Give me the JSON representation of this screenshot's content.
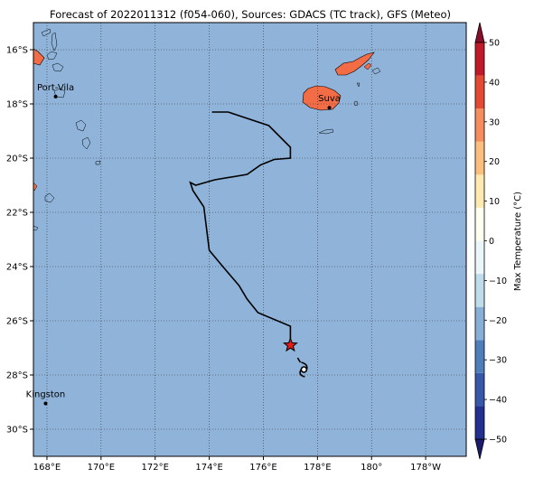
{
  "title": "Forecast of 2022011312 (f054-060), Sources: GDACS (TC track), GFS (Meteo)",
  "map": {
    "lon_range": [
      167.5,
      183.5
    ],
    "lat_range": [
      -31.0,
      -15.0
    ],
    "ocean_color": "#8fb3d9",
    "land_cold_color": "#8fb3d9",
    "land_warm_color": "#f26c45",
    "gridlines": "dotted",
    "x_ticks": [
      {
        "lon": 168,
        "label": "168°E"
      },
      {
        "lon": 170,
        "label": "170°E"
      },
      {
        "lon": 172,
        "label": "172°E"
      },
      {
        "lon": 174,
        "label": "174°E"
      },
      {
        "lon": 176,
        "label": "176°E"
      },
      {
        "lon": 178,
        "label": "178°E"
      },
      {
        "lon": 180,
        "label": "180°"
      },
      {
        "lon": 182,
        "label": "178°W"
      }
    ],
    "y_ticks": [
      {
        "lat": -16,
        "label": "16°S"
      },
      {
        "lat": -18,
        "label": "18°S"
      },
      {
        "lat": -20,
        "label": "20°S"
      },
      {
        "lat": -22,
        "label": "22°S"
      },
      {
        "lat": -24,
        "label": "24°S"
      },
      {
        "lat": -26,
        "label": "26°S"
      },
      {
        "lat": -28,
        "label": "28°S"
      },
      {
        "lat": -30,
        "label": "30°S"
      }
    ]
  },
  "cities": [
    {
      "name": "Port-Vila",
      "lon": 168.32,
      "lat": -17.73
    },
    {
      "name": "Suva",
      "lon": 178.44,
      "lat": -18.14
    },
    {
      "name": "Kingston",
      "lon": 167.95,
      "lat": -29.05
    }
  ],
  "track": {
    "color": "#000000",
    "points": [
      [
        174.1,
        -18.3
      ],
      [
        174.7,
        -18.3
      ],
      [
        176.2,
        -18.8
      ],
      [
        177.0,
        -19.6
      ],
      [
        177.0,
        -20.0
      ],
      [
        176.4,
        -20.05
      ],
      [
        175.9,
        -20.25
      ],
      [
        175.4,
        -20.6
      ],
      [
        174.2,
        -20.8
      ],
      [
        173.5,
        -21.0
      ],
      [
        173.3,
        -20.9
      ],
      [
        173.4,
        -21.2
      ],
      [
        173.8,
        -21.8
      ],
      [
        174.0,
        -23.4
      ],
      [
        174.5,
        -24.0
      ],
      [
        175.1,
        -24.7
      ],
      [
        175.4,
        -25.2
      ],
      [
        175.8,
        -25.7
      ],
      [
        177.0,
        -26.2
      ],
      [
        177.0,
        -26.9
      ]
    ],
    "star": {
      "lon": 177.0,
      "lat": -26.9,
      "color": "#e01b1b"
    },
    "cyclone_symbol": {
      "lon": 177.5,
      "lat": -27.8
    }
  },
  "colorbar": {
    "label": "Max Temperature (°C)",
    "min": -50,
    "max": 50,
    "ticks": [
      50,
      40,
      30,
      20,
      10,
      0,
      -10,
      -20,
      -30,
      -40,
      -50
    ],
    "colors": [
      "#1c1c6e",
      "#22308f",
      "#3558a8",
      "#4f7fba",
      "#86b0d6",
      "#bfdcea",
      "#eaf6fa",
      "#fffff0",
      "#fee9b0",
      "#fcbe7c",
      "#f58d5c",
      "#e34a33",
      "#c1192a",
      "#8b0d2c"
    ]
  }
}
